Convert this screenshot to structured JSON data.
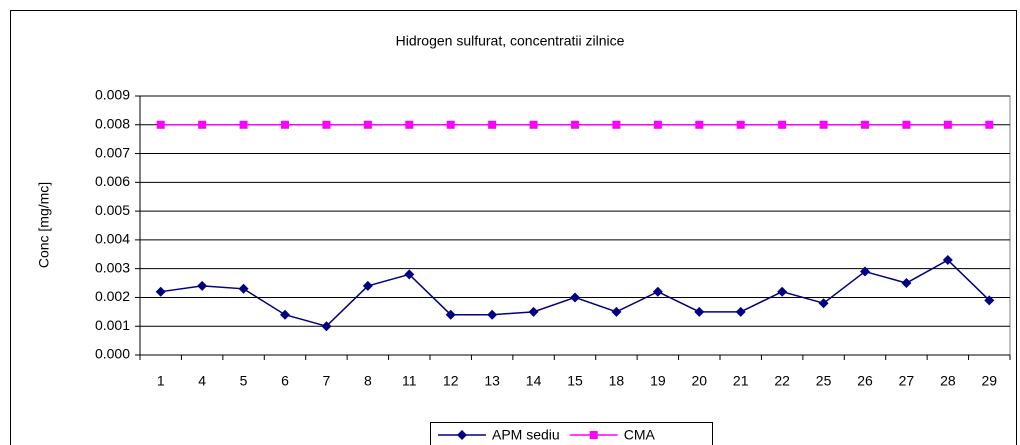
{
  "chart_data": {
    "type": "line",
    "title": "Hidrogen sulfurat, concentratii zilnice",
    "y_label": "Conc [mg/mc]",
    "categories": [
      "1",
      "4",
      "5",
      "6",
      "7",
      "8",
      "11",
      "12",
      "13",
      "14",
      "15",
      "18",
      "19",
      "20",
      "21",
      "22",
      "25",
      "26",
      "27",
      "28",
      "29"
    ],
    "series": [
      {
        "name": "APM sediu",
        "color": "#000080",
        "marker": "diamond",
        "values": [
          0.0022,
          0.0024,
          0.0023,
          0.0014,
          0.001,
          0.0024,
          0.0028,
          0.0014,
          0.0014,
          0.0015,
          0.002,
          0.0015,
          0.0022,
          0.0015,
          0.0015,
          0.0022,
          0.0018,
          0.0029,
          0.0025,
          0.0033,
          0.0019
        ]
      },
      {
        "name": "CMA",
        "color": "#ff00ff",
        "marker": "square",
        "values": [
          0.008,
          0.008,
          0.008,
          0.008,
          0.008,
          0.008,
          0.008,
          0.008,
          0.008,
          0.008,
          0.008,
          0.008,
          0.008,
          0.008,
          0.008,
          0.008,
          0.008,
          0.008,
          0.008,
          0.008,
          0.008
        ]
      }
    ],
    "ylim": [
      0,
      0.009
    ],
    "yticks": [
      {
        "value": 0,
        "label": "0.000"
      },
      0.001,
      0.002,
      0.003,
      0.004,
      0.005,
      0.006,
      0.007,
      0.008,
      0.009
    ],
    "grid": true,
    "legend": "bottom"
  }
}
